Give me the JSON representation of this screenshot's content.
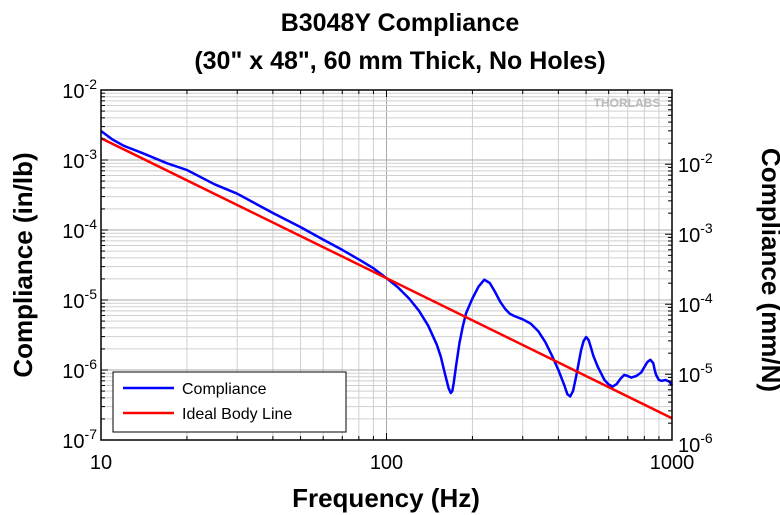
{
  "chart_data": {
    "type": "line",
    "title": "B3048Y Compliance",
    "subtitle": "(30\" x 48\", 60 mm Thick, No Holes)",
    "xlabel": "Frequency (Hz)",
    "ylabel_left": "Compliance (in/lb)",
    "ylabel_right": "Compliance (mm/N)",
    "x_scale": "log",
    "y_scale": "log",
    "xlim": [
      10,
      1000
    ],
    "ylim_left": [
      1e-07,
      0.01
    ],
    "ylim_right_mm_per_N": [
      1.15e-06,
      0.115
    ],
    "grid": true,
    "x_ticks": [
      {
        "value": 10,
        "label": "10"
      },
      {
        "value": 100,
        "label": "100"
      },
      {
        "value": 1000,
        "label": "1000"
      }
    ],
    "y_ticks_left": [
      {
        "value": 0.01,
        "base": "10",
        "exp": "-2"
      },
      {
        "value": 0.001,
        "base": "10",
        "exp": "-3"
      },
      {
        "value": 0.0001,
        "base": "10",
        "exp": "-4"
      },
      {
        "value": 1e-05,
        "base": "10",
        "exp": "-5"
      },
      {
        "value": 1e-06,
        "base": "10",
        "exp": "-6"
      },
      {
        "value": 1e-07,
        "base": "10",
        "exp": "-7"
      }
    ],
    "y_ticks_right": [
      {
        "value": 0.01,
        "base": "10",
        "exp": "-2"
      },
      {
        "value": 0.001,
        "base": "10",
        "exp": "-3"
      },
      {
        "value": 0.0001,
        "base": "10",
        "exp": "-4"
      },
      {
        "value": 1e-05,
        "base": "10",
        "exp": "-5"
      },
      {
        "value": 1e-06,
        "base": "10",
        "exp": "-6"
      }
    ],
    "legend_position": "bottom-left",
    "watermark": "THORLABS",
    "series": [
      {
        "name": "Compliance",
        "color": "#0000ff",
        "x": [
          10,
          11,
          12,
          14,
          17,
          20,
          25,
          30,
          40,
          50,
          60,
          70,
          80,
          90,
          100,
          110,
          120,
          130,
          140,
          150,
          155,
          160,
          165,
          168,
          170,
          172,
          175,
          180,
          185,
          190,
          200,
          210,
          220,
          230,
          240,
          250,
          260,
          270,
          280,
          300,
          320,
          340,
          360,
          380,
          400,
          420,
          430,
          440,
          450,
          460,
          470,
          480,
          490,
          500,
          510,
          520,
          530,
          550,
          580,
          600,
          620,
          640,
          660,
          680,
          700,
          720,
          750,
          780,
          800,
          820,
          840,
          860,
          870,
          880,
          900,
          920,
          950,
          980,
          1000
        ],
        "y": [
          0.0026,
          0.00195,
          0.0016,
          0.00125,
          0.0009,
          0.00072,
          0.00045,
          0.00033,
          0.000175,
          0.00011,
          7.3e-05,
          5.2e-05,
          3.8e-05,
          2.85e-05,
          2.05e-05,
          1.5e-05,
          1.05e-05,
          7e-06,
          4.3e-06,
          2.3e-06,
          1.55e-06,
          9e-07,
          5.5e-07,
          4.7e-07,
          5e-07,
          6.5e-07,
          1.1e-06,
          2.4e-06,
          4.2e-06,
          6.5e-06,
          1.05e-05,
          1.55e-05,
          1.95e-05,
          1.75e-05,
          1.3e-05,
          9.5e-06,
          7.5e-06,
          6.4e-06,
          5.9e-06,
          5.3e-06,
          4.6e-06,
          3.6e-06,
          2.5e-06,
          1.6e-06,
          1e-06,
          6e-07,
          4.5e-07,
          4.2e-07,
          5e-07,
          7.5e-07,
          1.2e-06,
          1.9e-06,
          2.6e-06,
          2.95e-06,
          2.7e-06,
          2.1e-06,
          1.6e-06,
          1.1e-06,
          7.2e-07,
          6.2e-07,
          5.8e-07,
          6.3e-07,
          7.5e-07,
          8.5e-07,
          8.2e-07,
          7.8e-07,
          8.2e-07,
          9.2e-07,
          1.1e-06,
          1.3e-06,
          1.4e-06,
          1.25e-06,
          1e-06,
          8.5e-07,
          7.2e-07,
          7e-07,
          7.2e-07,
          6.8e-07,
          6e-07
        ]
      },
      {
        "name": "Ideal Body Line",
        "color": "#ff0000",
        "x": [
          10,
          1000
        ],
        "y": [
          0.00205,
          2.05e-07
        ]
      }
    ]
  }
}
